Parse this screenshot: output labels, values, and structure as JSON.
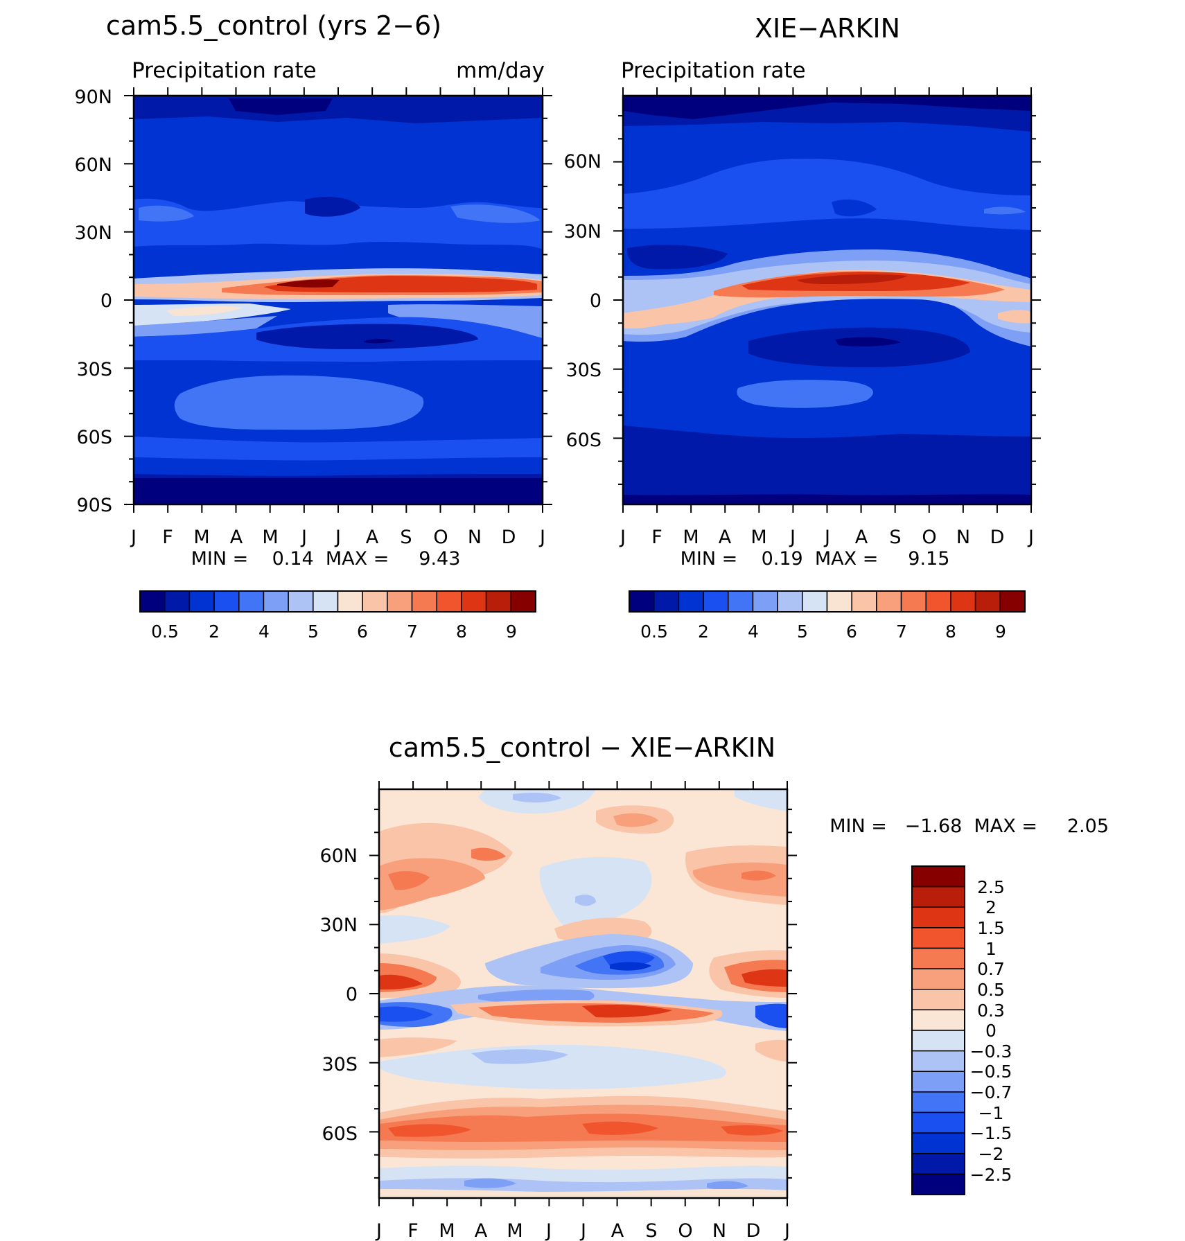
{
  "chart_data": [
    {
      "type": "heatmap",
      "title": "cam5.5_control (yrs 2−6)",
      "subtitle_left": "Precipitation rate",
      "subtitle_right": "mm/day",
      "x_tick_labels": [
        "J",
        "F",
        "M",
        "A",
        "M",
        "J",
        "J",
        "A",
        "S",
        "O",
        "N",
        "D",
        "J"
      ],
      "y_tick_labels": [
        "90N",
        "60N",
        "30N",
        "0",
        "30S",
        "60S",
        "90S"
      ],
      "y_range": [
        -90,
        90
      ],
      "stats_text": "MIN =    0.14  MAX =     9.43",
      "min": 0.14,
      "max": 9.43,
      "colorbar": {
        "orientation": "horizontal",
        "colors": [
          "#00007f",
          "#0019a8",
          "#0033d1",
          "#1a4ff0",
          "#4275f5",
          "#7d9ff5",
          "#adc2f5",
          "#d6e3f5",
          "#f9e3d3",
          "#f9c4a8",
          "#f8a07c",
          "#f57a52",
          "#f0552e",
          "#de3515",
          "#b91e0a",
          "#860000"
        ],
        "levels": [
          0.5,
          1,
          2,
          3,
          4,
          4.5,
          5,
          5.5,
          6,
          6.5,
          7,
          7.5,
          8,
          8.5,
          9
        ],
        "labels": [
          "0.5",
          "2",
          "4",
          "5",
          "6",
          "7",
          "8",
          "9"
        ]
      }
    },
    {
      "type": "heatmap",
      "title": "XIE−ARKIN",
      "subtitle_left": "Precipitation rate",
      "x_tick_labels": [
        "J",
        "F",
        "M",
        "A",
        "M",
        "J",
        "J",
        "A",
        "S",
        "O",
        "N",
        "D",
        "J"
      ],
      "y_tick_labels": [
        "60N",
        "30N",
        "0",
        "30S",
        "60S"
      ],
      "y_range": [
        -88.75,
        88.75
      ],
      "stats_text": "MIN =    0.19  MAX =     9.15",
      "min": 0.19,
      "max": 9.15,
      "colorbar": {
        "orientation": "horizontal",
        "colors": [
          "#00007f",
          "#0019a8",
          "#0033d1",
          "#1a4ff0",
          "#4275f5",
          "#7d9ff5",
          "#adc2f5",
          "#d6e3f5",
          "#f9e3d3",
          "#f9c4a8",
          "#f8a07c",
          "#f57a52",
          "#f0552e",
          "#de3515",
          "#b91e0a",
          "#860000"
        ],
        "labels": [
          "0.5",
          "2",
          "4",
          "5",
          "6",
          "7",
          "8",
          "9"
        ]
      }
    },
    {
      "type": "heatmap",
      "title": "cam5.5_control − XIE−ARKIN",
      "x_tick_labels": [
        "J",
        "F",
        "M",
        "A",
        "M",
        "J",
        "J",
        "A",
        "S",
        "O",
        "N",
        "D",
        "J"
      ],
      "y_tick_labels": [
        "60N",
        "30N",
        "0",
        "30S",
        "60S"
      ],
      "y_range": [
        -88.75,
        88.75
      ],
      "stats_text": "MIN =   −1.68  MAX =     2.05",
      "min": -1.68,
      "max": 2.05,
      "colorbar": {
        "orientation": "vertical",
        "colors_top_to_bottom": [
          "#860000",
          "#b91e0a",
          "#de3515",
          "#f0552e",
          "#f57a52",
          "#f8a07c",
          "#f9c4a8",
          "#fbe6d6",
          "#d6e3f5",
          "#adc2f5",
          "#7d9ff5",
          "#4275f5",
          "#1a4ff0",
          "#0033d1",
          "#0019a8",
          "#00007f"
        ],
        "labels": [
          "2.5",
          "2",
          "1.5",
          "1",
          "0.7",
          "0.5",
          "0.3",
          "0",
          "−0.3",
          "−0.5",
          "−0.7",
          "−1",
          "−1.5",
          "−2",
          "−2.5"
        ]
      }
    }
  ]
}
